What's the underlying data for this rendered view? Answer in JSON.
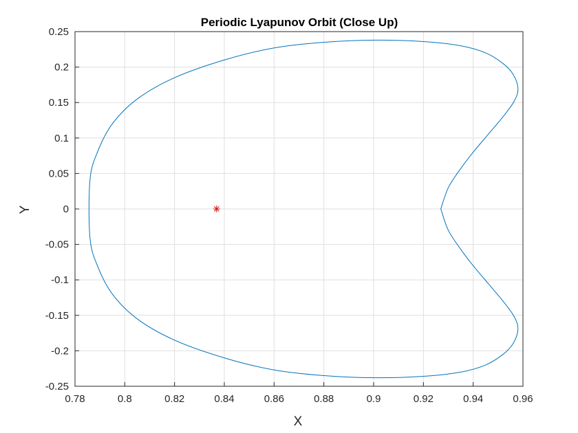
{
  "chart_data": {
    "type": "line",
    "title": "Periodic Lyapunov Orbit (Close Up)",
    "xlabel": "X",
    "ylabel": "Y",
    "xlim": [
      0.78,
      0.96
    ],
    "ylim": [
      -0.25,
      0.25
    ],
    "xticks": [
      0.78,
      0.8,
      0.82,
      0.84,
      0.86,
      0.88,
      0.9,
      0.92,
      0.94,
      0.96
    ],
    "yticks": [
      -0.25,
      -0.2,
      -0.15,
      -0.1,
      -0.05,
      0,
      0.05,
      0.1,
      0.15,
      0.2,
      0.25
    ],
    "xtick_labels": [
      "0.78",
      "0.8",
      "0.82",
      "0.84",
      "0.86",
      "0.88",
      "0.9",
      "0.92",
      "0.94",
      "0.96"
    ],
    "ytick_labels": [
      "-0.25",
      "-0.2",
      "-0.15",
      "-0.1",
      "-0.05",
      "0",
      "0.05",
      "0.1",
      "0.15",
      "0.2",
      "0.25"
    ],
    "grid": true,
    "series": [
      {
        "color": "#0072bd",
        "marker": "none",
        "closed": true,
        "x": [
          0.927,
          0.93,
          0.935,
          0.94,
          0.946,
          0.952,
          0.9565,
          0.958,
          0.956,
          0.952,
          0.945,
          0.935,
          0.92,
          0.901,
          0.88,
          0.86,
          0.84,
          0.82,
          0.805,
          0.795,
          0.789,
          0.786,
          0.786,
          0.789,
          0.795,
          0.805,
          0.82,
          0.84,
          0.86,
          0.88,
          0.901,
          0.92,
          0.935,
          0.945,
          0.952,
          0.956,
          0.958,
          0.9565,
          0.952,
          0.946,
          0.94,
          0.935,
          0.93,
          0.927
        ],
        "y": [
          0.0,
          0.03,
          0.057,
          0.08,
          0.105,
          0.13,
          0.152,
          0.17,
          0.19,
          0.205,
          0.22,
          0.23,
          0.236,
          0.238,
          0.235,
          0.227,
          0.21,
          0.185,
          0.155,
          0.12,
          0.08,
          0.04,
          -0.04,
          -0.08,
          -0.12,
          -0.155,
          -0.185,
          -0.21,
          -0.227,
          -0.235,
          -0.238,
          -0.236,
          -0.23,
          -0.22,
          -0.205,
          -0.19,
          -0.17,
          -0.152,
          -0.13,
          -0.105,
          -0.08,
          -0.057,
          -0.03,
          0.0
        ]
      },
      {
        "color": "#d01010",
        "marker": "asterisk",
        "x": [
          0.8369
        ],
        "y": [
          0.0
        ]
      }
    ]
  }
}
